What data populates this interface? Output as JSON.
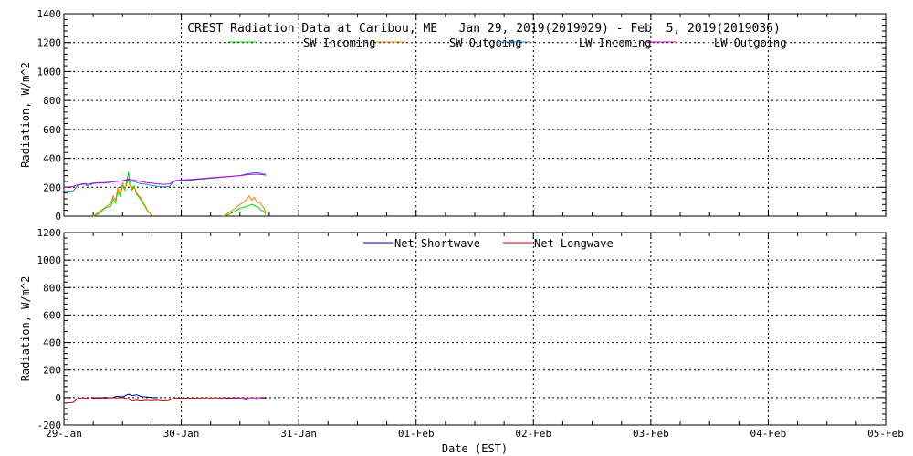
{
  "title": "CREST Radiation Data at Caribou, ME   Jan 29, 2019(2019029) - Feb  5, 2019(2019036)",
  "xlabel": "Date (EST)",
  "x_ticks": [
    "29-Jan",
    "30-Jan",
    "31-Jan",
    "01-Feb",
    "02-Feb",
    "03-Feb",
    "04-Feb",
    "05-Feb"
  ],
  "chart_data": [
    {
      "type": "line",
      "ylabel": "Radiation, W/m^2",
      "ylim": [
        0,
        1400
      ],
      "yticks": [
        0,
        200,
        400,
        600,
        800,
        1000,
        1200,
        1400
      ],
      "xlim": [
        0,
        7
      ],
      "grid": true,
      "legend": "top",
      "series": [
        {
          "name": "SW Incoming",
          "color": "#00dd00",
          "segments": [
            [
              [
                0.25,
                0
              ],
              [
                0.3,
                18
              ],
              [
                0.35,
                55
              ],
              [
                0.4,
                70
              ],
              [
                0.42,
                120
              ],
              [
                0.44,
                90
              ],
              [
                0.46,
                170
              ],
              [
                0.48,
                140
              ],
              [
                0.5,
                210
              ],
              [
                0.52,
                180
              ],
              [
                0.54,
                260
              ],
              [
                0.55,
                305
              ],
              [
                0.56,
                250
              ],
              [
                0.58,
                190
              ],
              [
                0.6,
                210
              ],
              [
                0.62,
                150
              ],
              [
                0.65,
                120
              ],
              [
                0.68,
                80
              ],
              [
                0.71,
                40
              ],
              [
                0.74,
                10
              ],
              [
                0.76,
                0
              ]
            ],
            [
              [
                1.35,
                0
              ],
              [
                1.4,
                10
              ],
              [
                1.45,
                30
              ],
              [
                1.5,
                55
              ],
              [
                1.55,
                65
              ],
              [
                1.58,
                75
              ],
              [
                1.6,
                80
              ],
              [
                1.63,
                70
              ],
              [
                1.66,
                60
              ],
              [
                1.68,
                40
              ],
              [
                1.7,
                35
              ],
              [
                1.72,
                10
              ]
            ]
          ]
        },
        {
          "name": "SW Outgoing",
          "color": "#ee8800",
          "segments": [
            [
              [
                0.25,
                0
              ],
              [
                0.3,
                30
              ],
              [
                0.35,
                60
              ],
              [
                0.4,
                90
              ],
              [
                0.42,
                140
              ],
              [
                0.44,
                110
              ],
              [
                0.46,
                200
              ],
              [
                0.48,
                150
              ],
              [
                0.5,
                230
              ],
              [
                0.52,
                190
              ],
              [
                0.54,
                230
              ],
              [
                0.55,
                260
              ],
              [
                0.56,
                220
              ],
              [
                0.58,
                180
              ],
              [
                0.6,
                200
              ],
              [
                0.62,
                160
              ],
              [
                0.65,
                130
              ],
              [
                0.68,
                90
              ],
              [
                0.71,
                45
              ],
              [
                0.74,
                12
              ],
              [
                0.76,
                0
              ]
            ],
            [
              [
                1.35,
                0
              ],
              [
                1.4,
                20
              ],
              [
                1.45,
                50
              ],
              [
                1.5,
                80
              ],
              [
                1.55,
                110
              ],
              [
                1.58,
                140
              ],
              [
                1.6,
                110
              ],
              [
                1.62,
                130
              ],
              [
                1.65,
                90
              ],
              [
                1.67,
                95
              ],
              [
                1.69,
                70
              ],
              [
                1.71,
                45
              ],
              [
                1.72,
                20
              ]
            ]
          ]
        },
        {
          "name": "LW Incoming",
          "color": "#1188cc",
          "segments": [
            [
              [
                0,
                170
              ],
              [
                0.08,
                175
              ],
              [
                0.12,
                215
              ],
              [
                0.18,
                222
              ],
              [
                0.2,
                210
              ],
              [
                0.25,
                225
              ],
              [
                0.3,
                230
              ],
              [
                0.35,
                228
              ],
              [
                0.4,
                235
              ],
              [
                0.45,
                240
              ],
              [
                0.5,
                245
              ],
              [
                0.55,
                250
              ],
              [
                0.6,
                238
              ],
              [
                0.65,
                225
              ],
              [
                0.7,
                220
              ],
              [
                0.75,
                212
              ],
              [
                0.8,
                205
              ],
              [
                0.85,
                203
              ],
              [
                0.9,
                205
              ],
              [
                0.93,
                235
              ],
              [
                0.96,
                245
              ],
              [
                1.0,
                245
              ],
              [
                1.1,
                250
              ],
              [
                1.2,
                258
              ],
              [
                1.3,
                265
              ],
              [
                1.4,
                272
              ],
              [
                1.5,
                280
              ],
              [
                1.55,
                290
              ],
              [
                1.6,
                298
              ],
              [
                1.65,
                300
              ],
              [
                1.7,
                292
              ],
              [
                1.72,
                290
              ]
            ]
          ]
        },
        {
          "name": "LW Outgoing",
          "color": "#cc00cc",
          "segments": [
            [
              [
                0,
                200
              ],
              [
                0.08,
                205
              ],
              [
                0.12,
                218
              ],
              [
                0.18,
                225
              ],
              [
                0.2,
                220
              ],
              [
                0.25,
                228
              ],
              [
                0.3,
                232
              ],
              [
                0.35,
                233
              ],
              [
                0.4,
                236
              ],
              [
                0.45,
                240
              ],
              [
                0.5,
                245
              ],
              [
                0.55,
                258
              ],
              [
                0.6,
                248
              ],
              [
                0.65,
                240
              ],
              [
                0.7,
                233
              ],
              [
                0.75,
                228
              ],
              [
                0.8,
                222
              ],
              [
                0.85,
                220
              ],
              [
                0.9,
                222
              ],
              [
                0.93,
                240
              ],
              [
                0.96,
                248
              ],
              [
                1.0,
                250
              ],
              [
                1.1,
                255
              ],
              [
                1.2,
                262
              ],
              [
                1.3,
                268
              ],
              [
                1.4,
                274
              ],
              [
                1.5,
                280
              ],
              [
                1.55,
                285
              ],
              [
                1.6,
                288
              ],
              [
                1.65,
                290
              ],
              [
                1.7,
                285
              ],
              [
                1.72,
                283
              ]
            ]
          ]
        }
      ]
    },
    {
      "type": "line",
      "ylabel": "Radiation, W/m^2",
      "ylim": [
        -200,
        1200
      ],
      "yticks": [
        -200,
        0,
        200,
        400,
        600,
        800,
        1000,
        1200
      ],
      "xlim": [
        0,
        7
      ],
      "grid": true,
      "legend": "top",
      "series": [
        {
          "name": "Net Shortwave",
          "color": "#000099",
          "segments": [
            [
              [
                0.25,
                0
              ],
              [
                0.3,
                -5
              ],
              [
                0.35,
                2
              ],
              [
                0.4,
                -3
              ],
              [
                0.45,
                10
              ],
              [
                0.5,
                5
              ],
              [
                0.55,
                25
              ],
              [
                0.58,
                15
              ],
              [
                0.62,
                20
              ],
              [
                0.66,
                8
              ],
              [
                0.7,
                5
              ],
              [
                0.76,
                0
              ],
              [
                0.8,
                0
              ]
            ],
            [
              [
                1.35,
                0
              ],
              [
                1.4,
                -5
              ],
              [
                1.45,
                -8
              ],
              [
                1.5,
                -10
              ],
              [
                1.55,
                -15
              ],
              [
                1.6,
                -10
              ],
              [
                1.65,
                -12
              ],
              [
                1.72,
                -5
              ]
            ]
          ]
        },
        {
          "name": "Net Longwave",
          "color": "#cc0000",
          "segments": [
            [
              [
                0,
                -40
              ],
              [
                0.08,
                -35
              ],
              [
                0.12,
                -5
              ],
              [
                0.18,
                -3
              ],
              [
                0.22,
                -10
              ],
              [
                0.26,
                -5
              ],
              [
                0.3,
                0
              ],
              [
                0.35,
                -5
              ],
              [
                0.4,
                0
              ],
              [
                0.45,
                -3
              ],
              [
                0.5,
                0
              ],
              [
                0.55,
                -10
              ],
              [
                0.58,
                -25
              ],
              [
                0.62,
                -20
              ],
              [
                0.66,
                -25
              ],
              [
                0.7,
                -20
              ],
              [
                0.75,
                -22
              ],
              [
                0.8,
                -20
              ],
              [
                0.85,
                -25
              ],
              [
                0.9,
                -20
              ],
              [
                0.93,
                -5
              ],
              [
                1.0,
                -5
              ],
              [
                1.2,
                -3
              ],
              [
                1.4,
                -3
              ],
              [
                1.6,
                -2
              ],
              [
                1.72,
                0
              ]
            ]
          ]
        }
      ]
    }
  ]
}
